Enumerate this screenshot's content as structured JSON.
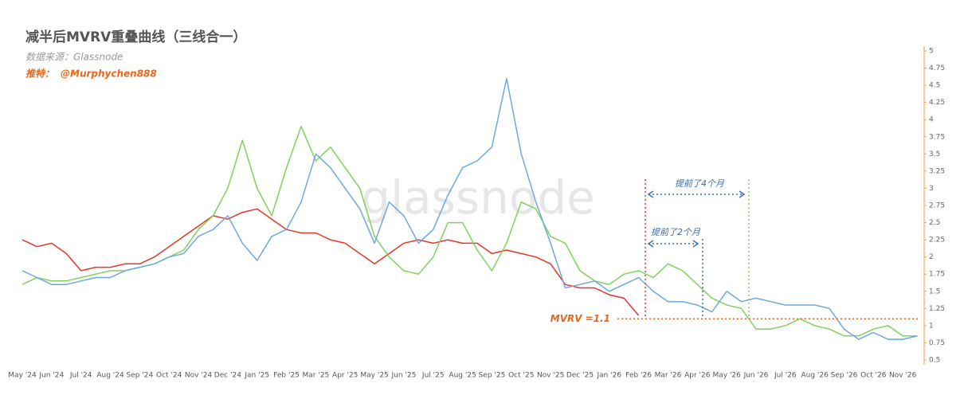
{
  "chart_data": {
    "type": "line",
    "title": "减半后MVRV重叠曲线（三线合一）",
    "subtitle": "数据来源：Glassnode",
    "twitter_label": "推特：",
    "twitter_handle": "@Murphychen888",
    "watermark": "glassnode",
    "categories": [
      "May '24",
      null,
      "Jun '24",
      null,
      "Jul '24",
      null,
      "Aug '24",
      null,
      "Sep '24",
      null,
      "Oct '24",
      null,
      "Nov '24",
      null,
      "Dec '24",
      null,
      "Jan '25",
      null,
      "Feb '25",
      null,
      "Mar '25",
      null,
      "Apr '25",
      null,
      "May '25",
      null,
      "Jun '25",
      null,
      "Jul '25",
      null,
      "Aug '25",
      null,
      "Sep '25",
      null,
      "Oct '25",
      null,
      "Nov '25",
      null,
      "Dec '25",
      null,
      "Jan '26",
      null,
      "Feb '26",
      null,
      "Mar '26",
      null,
      "Apr '26",
      null,
      "May '26",
      null,
      "Jun '26",
      null,
      "Jul '26",
      null,
      "Aug '26",
      null,
      "Sep '26",
      null,
      "Oct '26",
      null,
      "Nov '26",
      null
    ],
    "series": [
      {
        "color": "#e0392b",
        "values": [
          2.25,
          2.15,
          2.2,
          2.05,
          1.8,
          1.85,
          1.85,
          1.9,
          1.9,
          2.0,
          2.15,
          2.3,
          2.45,
          2.6,
          2.55,
          2.65,
          2.7,
          2.55,
          2.4,
          2.35,
          2.35,
          2.25,
          2.2,
          2.05,
          1.9,
          2.05,
          2.2,
          2.25,
          2.2,
          2.25,
          2.2,
          2.2,
          2.05,
          2.1,
          2.05,
          2.0,
          1.9,
          1.6,
          1.55,
          1.55,
          1.45,
          1.4,
          1.15,
          null,
          null,
          null,
          null,
          null,
          null,
          null,
          null,
          null,
          null,
          null,
          null,
          null,
          null,
          null,
          null,
          null,
          null,
          null
        ]
      },
      {
        "color": "#7fd35b",
        "values": [
          1.6,
          1.7,
          1.65,
          1.65,
          1.7,
          1.75,
          1.8,
          1.8,
          1.85,
          1.9,
          2.0,
          2.1,
          2.4,
          2.6,
          3.0,
          3.7,
          3.0,
          2.6,
          3.3,
          3.9,
          3.4,
          3.6,
          3.3,
          3.0,
          2.3,
          2.0,
          1.8,
          1.75,
          2.0,
          2.5,
          2.5,
          2.1,
          1.8,
          2.2,
          2.8,
          2.7,
          2.3,
          2.2,
          1.8,
          1.65,
          1.6,
          1.75,
          1.8,
          1.7,
          1.9,
          1.8,
          1.6,
          1.4,
          1.3,
          1.25,
          0.95,
          0.95,
          1.0,
          1.1,
          1.0,
          0.95,
          0.85,
          0.85,
          0.95,
          1.0,
          0.85,
          0.85
        ]
      },
      {
        "color": "#6fa8dc",
        "values": [
          1.8,
          1.7,
          1.6,
          1.6,
          1.65,
          1.7,
          1.7,
          1.8,
          1.85,
          1.9,
          2.0,
          2.05,
          2.3,
          2.4,
          2.6,
          2.2,
          1.95,
          2.3,
          2.4,
          2.8,
          3.5,
          3.3,
          3.0,
          2.7,
          2.2,
          2.8,
          2.6,
          2.2,
          2.4,
          2.9,
          3.3,
          3.4,
          3.6,
          4.6,
          3.5,
          2.8,
          2.2,
          1.55,
          1.6,
          1.65,
          1.5,
          1.6,
          1.7,
          1.5,
          1.35,
          1.35,
          1.3,
          1.2,
          1.5,
          1.35,
          1.4,
          1.35,
          1.3,
          1.3,
          1.3,
          1.25,
          0.95,
          0.8,
          0.9,
          0.8,
          0.8,
          0.85
        ]
      }
    ],
    "ylim": [
      0.5,
      5
    ],
    "yticks": [
      0.5,
      0.75,
      1,
      1.25,
      1.5,
      1.75,
      2,
      2.25,
      2.5,
      2.75,
      3,
      3.25,
      3.5,
      3.75,
      4,
      4.25,
      4.5,
      4.75,
      5
    ],
    "hline": {
      "value": 1.1,
      "label": "MVRV =1.1",
      "color": "#e8671c"
    },
    "annotations": [
      "提前了4个月",
      "提前了2个月"
    ]
  }
}
